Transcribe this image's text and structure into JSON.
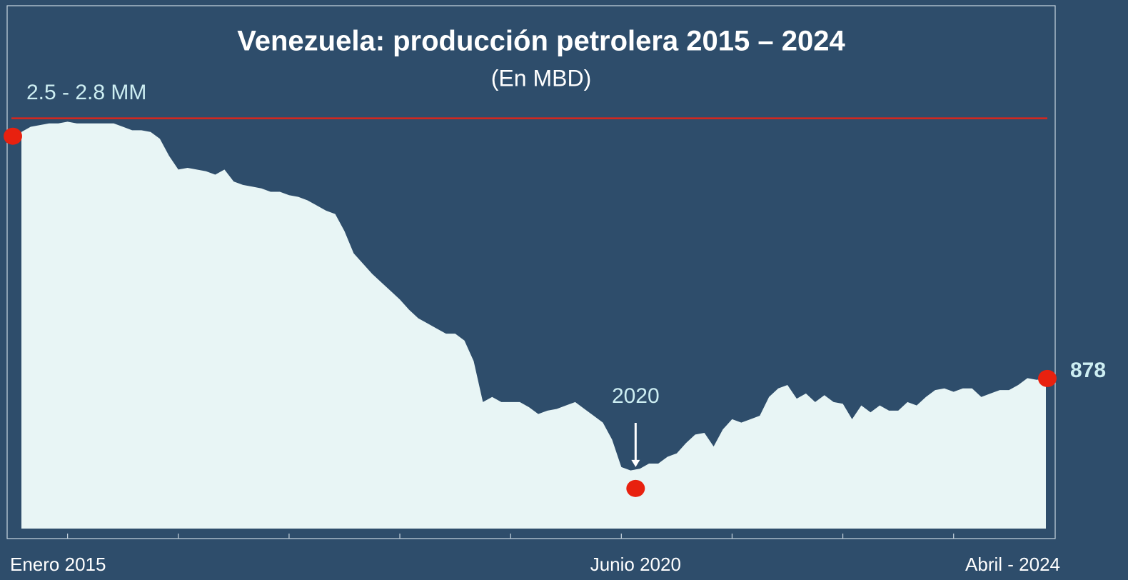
{
  "chart_data": {
    "type": "area",
    "title": "Venezuela: producción petrolera 2015 – 2024",
    "subtitle": "(En MBD)",
    "categories": [
      "Enero 2015",
      null,
      null,
      null,
      null,
      null,
      null,
      null,
      null,
      null,
      null,
      null,
      null,
      null,
      null,
      null,
      null,
      null,
      null,
      null,
      null,
      null,
      null,
      null,
      null,
      null,
      null,
      null,
      null,
      null,
      null,
      null,
      null,
      null,
      null,
      null,
      null,
      null,
      null,
      null,
      null,
      null,
      null,
      null,
      null,
      null,
      null,
      null,
      null,
      null,
      null,
      null,
      null,
      null,
      null,
      null,
      null,
      null,
      null,
      null,
      null,
      null,
      null,
      null,
      null,
      "Junio 2020",
      null,
      null,
      null,
      null,
      null,
      null,
      null,
      null,
      null,
      null,
      null,
      null,
      null,
      null,
      null,
      null,
      null,
      null,
      null,
      null,
      null,
      null,
      null,
      null,
      null,
      null,
      null,
      null,
      null,
      null,
      null,
      null,
      null,
      null,
      null,
      null,
      null,
      null,
      null,
      null,
      null,
      null,
      null,
      null,
      null,
      "Abril - 2024"
    ],
    "values": [
      2320,
      2350,
      2360,
      2370,
      2370,
      2380,
      2370,
      2370,
      2370,
      2370,
      2370,
      2350,
      2330,
      2330,
      2320,
      2280,
      2180,
      2100,
      2110,
      2100,
      2090,
      2070,
      2100,
      2030,
      2010,
      2000,
      1990,
      1970,
      1970,
      1950,
      1940,
      1920,
      1890,
      1860,
      1840,
      1740,
      1610,
      1550,
      1490,
      1440,
      1390,
      1340,
      1280,
      1230,
      1200,
      1170,
      1140,
      1140,
      1100,
      980,
      740,
      770,
      740,
      740,
      740,
      710,
      670,
      690,
      700,
      720,
      740,
      700,
      660,
      620,
      520,
      360,
      340,
      350,
      380,
      380,
      420,
      440,
      500,
      550,
      560,
      480,
      580,
      640,
      620,
      640,
      660,
      770,
      820,
      840,
      760,
      790,
      740,
      780,
      740,
      730,
      640,
      720,
      680,
      720,
      690,
      690,
      740,
      720,
      770,
      810,
      820,
      800,
      820,
      820,
      770,
      790,
      810,
      810,
      840,
      880,
      870,
      878
    ],
    "color": "#e8f5f5",
    "ylim": [
      0,
      3050
    ],
    "reference_line": {
      "value": 2400,
      "label": "2.5 - 2.8 MM",
      "color": "#d9261c"
    },
    "annotations": [
      {
        "index": 65,
        "label": "2020"
      }
    ],
    "highlight": {
      "indices": [
        0,
        65,
        111
      ],
      "color": "#e8210f"
    }
  }
}
